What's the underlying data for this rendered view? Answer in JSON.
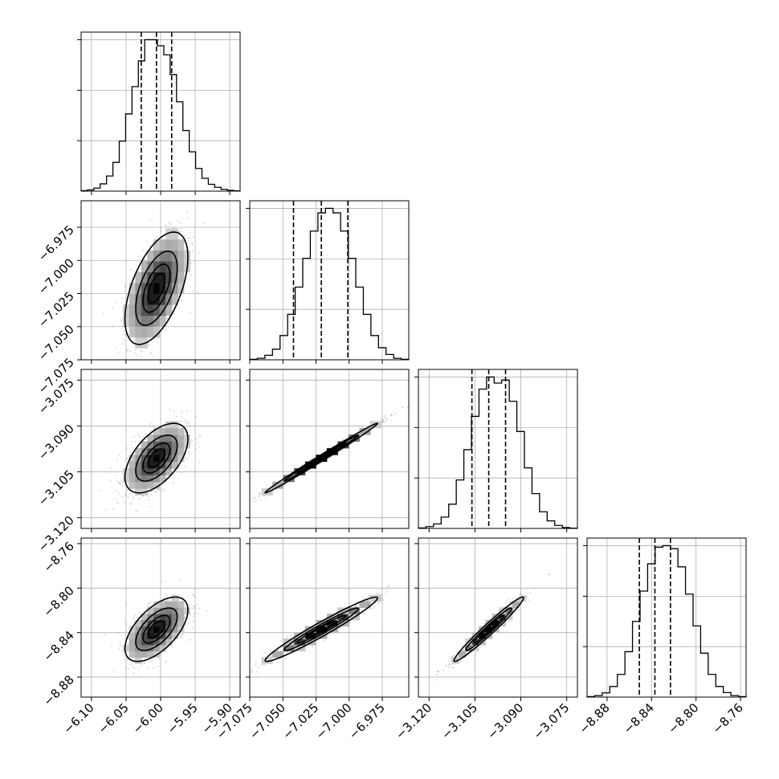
{
  "chart_data": {
    "type": "corner",
    "grid": true,
    "parameters": [
      {
        "index": 0,
        "median": -6.006,
        "quantiles": [
          -6.028,
          -6.006,
          -5.984
        ],
        "sigma": 0.022,
        "range": [
          -6.115,
          -5.885
        ],
        "ticks": [
          -6.1,
          -6.05,
          -6.0,
          -5.95,
          -5.9
        ],
        "tick_labels": [
          "−6.10",
          "−6.05",
          "−6.00",
          "−5.95",
          "−5.90"
        ]
      },
      {
        "index": 1,
        "median": -7.021,
        "quantiles": [
          -7.042,
          -7.021,
          -7.001
        ],
        "sigma": 0.0205,
        "range": [
          -7.075,
          -6.955
        ],
        "ticks": [
          -7.075,
          -7.05,
          -7.025,
          -7.0,
          -6.975
        ],
        "tick_labels": [
          "−7.075",
          "−7.050",
          "−7.025",
          "−7.000",
          "−6.975"
        ]
      },
      {
        "index": 2,
        "median": -3.1005,
        "quantiles": [
          -3.106,
          -3.1005,
          -3.095
        ],
        "sigma": 0.0055,
        "range": [
          -3.1235,
          -3.0715
        ],
        "ticks": [
          -3.12,
          -3.105,
          -3.09,
          -3.075
        ],
        "tick_labels": [
          "−3.120",
          "−3.105",
          "−3.090",
          "−3.075"
        ]
      },
      {
        "index": 3,
        "median": -8.837,
        "quantiles": [
          -8.851,
          -8.837,
          -8.823
        ],
        "sigma": 0.014,
        "range": [
          -8.898,
          -8.755
        ],
        "ticks": [
          -8.88,
          -8.84,
          -8.8,
          -8.76
        ],
        "tick_labels": [
          "−8.88",
          "−8.84",
          "−8.80",
          "−8.76"
        ]
      }
    ],
    "histograms": [
      {
        "param": 0,
        "range": [
          -6.115,
          -5.885
        ],
        "counts": [
          3,
          8,
          20,
          48,
          100,
          190,
          330,
          510,
          690,
          860,
          1000,
          1000,
          960,
          900,
          770,
          590,
          400,
          260,
          150,
          85,
          45,
          25,
          12,
          5,
          2
        ]
      },
      {
        "param": 1,
        "range": [
          -7.075,
          -6.955
        ],
        "counts": [
          3,
          10,
          30,
          70,
          160,
          300,
          480,
          670,
          850,
          970,
          1000,
          970,
          850,
          670,
          480,
          300,
          160,
          80,
          35,
          10,
          3
        ]
      },
      {
        "param": 2,
        "range": [
          -3.1235,
          -3.0715
        ],
        "counts": [
          3,
          12,
          30,
          75,
          160,
          320,
          520,
          740,
          920,
          1000,
          960,
          980,
          840,
          640,
          400,
          230,
          110,
          50,
          20,
          6,
          2
        ]
      },
      {
        "param": 3,
        "range": [
          -8.898,
          -8.755
        ],
        "counts": [
          3,
          10,
          28,
          70,
          150,
          300,
          500,
          700,
          880,
          990,
          1000,
          980,
          860,
          680,
          470,
          290,
          150,
          70,
          30,
          10,
          3
        ]
      }
    ],
    "pairs": [
      {
        "x_param": 0,
        "y_param": 1,
        "correlation": 0.55
      },
      {
        "x_param": 0,
        "y_param": 2,
        "correlation": 0.55
      },
      {
        "x_param": 0,
        "y_param": 3,
        "correlation": 0.6
      },
      {
        "x_param": 1,
        "y_param": 2,
        "correlation": 0.995
      },
      {
        "x_param": 1,
        "y_param": 3,
        "correlation": 0.97
      },
      {
        "x_param": 2,
        "y_param": 3,
        "correlation": 0.975
      }
    ]
  }
}
